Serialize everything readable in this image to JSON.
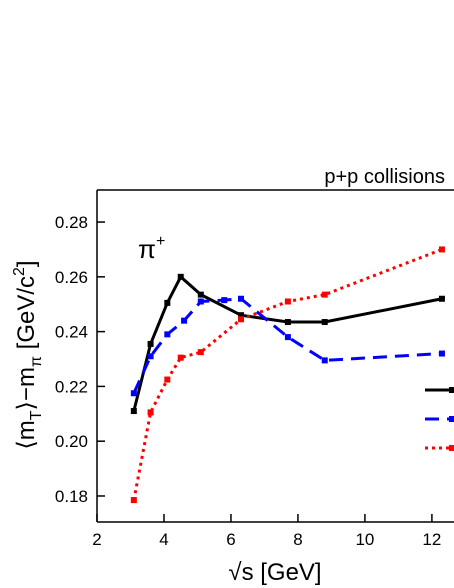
{
  "chart_data": {
    "type": "line",
    "title": "p+p collisions",
    "annotation": {
      "base": "π",
      "sup": "+"
    },
    "x_label": "√s [GeV]",
    "y_label": [
      {
        "t": "⟨m"
      },
      {
        "t": "T",
        "sub": true
      },
      {
        "t": "⟩−m"
      },
      {
        "t": "π",
        "sub": true
      },
      {
        "t": " [GeV/c"
      },
      {
        "t": "2",
        "sup": true
      },
      {
        "t": "]"
      }
    ],
    "xlim": [
      2,
      12.66
    ],
    "xticks": [
      2,
      4,
      6,
      8,
      10,
      12
    ],
    "ylim": [
      0.1705,
      0.2917
    ],
    "yticks": [
      {
        "value": 0.18,
        "label": "0.18"
      },
      {
        "value": 0.2,
        "label": "0.20"
      },
      {
        "value": 0.22,
        "label": "0.22"
      },
      {
        "value": 0.24,
        "label": "0.24"
      },
      {
        "value": 0.26,
        "label": "0.26"
      },
      {
        "value": 0.28,
        "label": "0.28"
      }
    ],
    "series": [
      {
        "color": "#000000",
        "dash": "solid",
        "x": [
          3.1,
          3.6,
          4.1,
          4.5,
          5.1,
          6.3,
          7.7,
          8.8,
          12.3
        ],
        "values": [
          0.211,
          0.2355,
          0.2505,
          0.26,
          0.2535,
          0.246,
          0.2435,
          0.2435,
          0.252
        ]
      },
      {
        "color": "#0000ff",
        "dash": "dashed",
        "x": [
          3.1,
          3.6,
          4.1,
          4.6,
          5.1,
          5.8,
          6.3,
          7.7,
          8.8,
          12.3
        ],
        "values": [
          0.2175,
          0.231,
          0.239,
          0.244,
          0.251,
          0.2515,
          0.252,
          0.238,
          0.2295,
          0.232
        ]
      },
      {
        "color": "#ff0000",
        "dash": "dotted",
        "x": [
          3.1,
          3.6,
          4.1,
          4.5,
          5.1,
          6.3,
          7.7,
          8.8,
          12.3
        ],
        "values": [
          0.1785,
          0.2105,
          0.2225,
          0.2305,
          0.2325,
          0.2445,
          0.251,
          0.2535,
          0.27
        ]
      }
    ]
  }
}
